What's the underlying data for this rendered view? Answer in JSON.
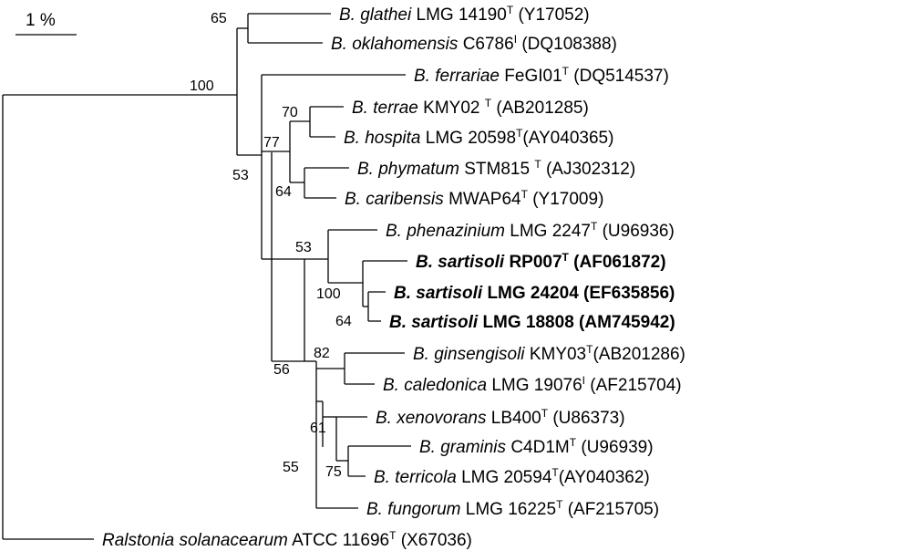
{
  "scale_bar": {
    "label": "1 %"
  },
  "taxa": [
    {
      "id": "glathei",
      "genus": "B. glathei",
      "strain": "LMG 14190",
      "sup": "T",
      "acc": "(Y17052)",
      "bold": false
    },
    {
      "id": "oklahomensis",
      "genus": "B. oklahomensis",
      "strain": "C6786",
      "sup": "I",
      "acc": "(DQ108388)",
      "bold": false
    },
    {
      "id": "ferrariae",
      "genus": "B. ferrariae",
      "strain": "FeGI01",
      "sup": "T",
      "acc": "(DQ514537)",
      "bold": false
    },
    {
      "id": "terrae",
      "genus": "B. terrae",
      "strain": "KMY02",
      "sup": "T",
      "acc": "(AB201285)",
      "bold": false
    },
    {
      "id": "hospita",
      "genus": "B. hospita",
      "strain": "LMG 20598",
      "sup": "T",
      "acc": "(AY040365)",
      "bold": false
    },
    {
      "id": "phymatum",
      "genus": "B. phymatum",
      "strain": "STM815",
      "sup": "T",
      "acc": "(AJ302312)",
      "bold": false
    },
    {
      "id": "caribensis",
      "genus": "B. caribensis",
      "strain": "MWAP64",
      "sup": "T",
      "acc": "(Y17009)",
      "bold": false
    },
    {
      "id": "phenazinium",
      "genus": "B. phenazinium",
      "strain": "LMG 2247",
      "sup": "T",
      "acc": "(U96936)",
      "bold": false
    },
    {
      "id": "sartisoli1",
      "genus": "B. sartisoli",
      "strain": "RP007",
      "sup": "T",
      "acc": "(AF061872)",
      "bold": true
    },
    {
      "id": "sartisoli2",
      "genus": "B. sartisoli",
      "strain": "LMG 24204",
      "sup": "",
      "acc": "(EF635856)",
      "bold": true
    },
    {
      "id": "sartisoli3",
      "genus": "B. sartisoli",
      "strain": "LMG 18808",
      "sup": "",
      "acc": "(AM745942)",
      "bold": true
    },
    {
      "id": "ginsengisoli",
      "genus": "B. ginsengisoli",
      "strain": "KMY03",
      "sup": "T",
      "acc": "(AB201286)",
      "bold": false
    },
    {
      "id": "caledonica",
      "genus": "B. caledonica",
      "strain": "LMG 19076",
      "sup": "I",
      "acc": "(AF215704)",
      "bold": false
    },
    {
      "id": "xenovorans",
      "genus": "B. xenovorans",
      "strain": "LB400",
      "sup": "T",
      "acc": "(U86373)",
      "bold": false
    },
    {
      "id": "graminis",
      "genus": "B. graminis",
      "strain": "C4D1M",
      "sup": "T",
      "acc": "(U96939)",
      "bold": false
    },
    {
      "id": "terricola",
      "genus": "B. terricola",
      "strain": "LMG 20594",
      "sup": "T",
      "acc": "(AY040362)",
      "bold": false
    },
    {
      "id": "fungorum",
      "genus": "B. fungorum",
      "strain": "LMG 16225",
      "sup": "T",
      "acc": "(AF215705)",
      "bold": false
    },
    {
      "id": "ralstonia",
      "genus": "Ralstonia solanacearum",
      "strain": "ATCC 11696",
      "sup": "T",
      "acc": "(X67036)",
      "bold": false
    }
  ],
  "bootstrap": [
    {
      "id": "bs-glathei-oklahomensis",
      "value": "65"
    },
    {
      "id": "bs-ingroup",
      "value": "100"
    },
    {
      "id": "bs-terrae-hospita",
      "value": "70"
    },
    {
      "id": "bs-terrae-group",
      "value": "77"
    },
    {
      "id": "bs-core",
      "value": "53"
    },
    {
      "id": "bs-phymatum-caribensis",
      "value": "64"
    },
    {
      "id": "bs-phenazinium-group",
      "value": "53"
    },
    {
      "id": "bs-sartisoli-group",
      "value": "100"
    },
    {
      "id": "bs-sartisoli-pair",
      "value": "64"
    },
    {
      "id": "bs-ginsengisoli-caledonica",
      "value": "82"
    },
    {
      "id": "bs-lower-group",
      "value": "56"
    },
    {
      "id": "bs-xenovorans-group",
      "value": "61"
    },
    {
      "id": "bs-graminis-terricola",
      "value": "75"
    },
    {
      "id": "bs-fungorum-group",
      "value": "55"
    }
  ]
}
